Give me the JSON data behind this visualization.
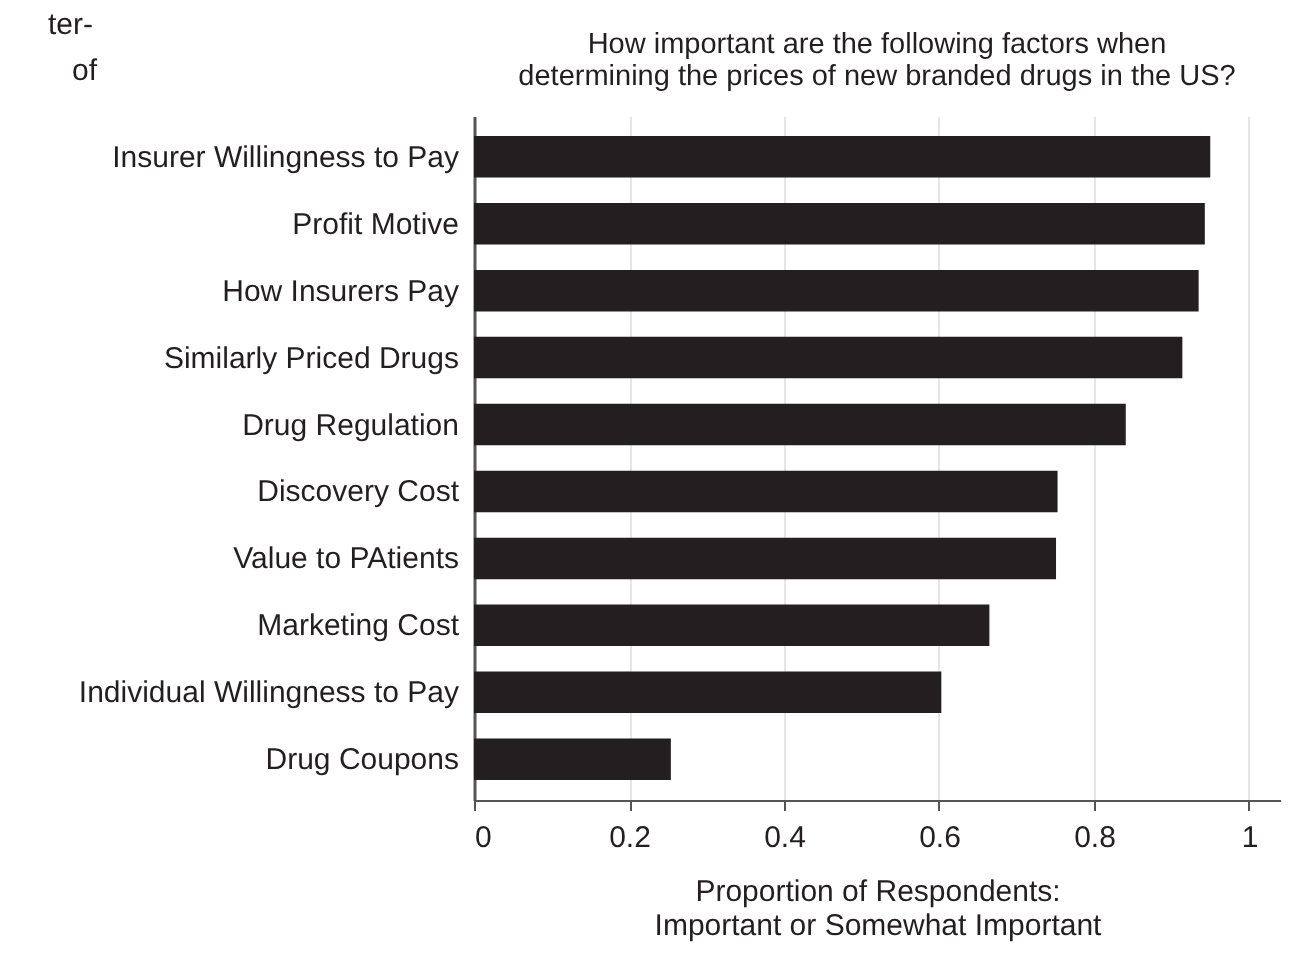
{
  "chart_data": {
    "type": "bar",
    "orientation": "horizontal",
    "title": "How important are the following factors when determining the prices of new branded drugs in the US?",
    "xlabel": "Proportion of Respondents: Important or Somewhat Important",
    "categories": [
      "Insurer Willingness to Pay",
      "Profit Motive",
      "How Insurers Pay",
      "Similarly Priced Drugs",
      "Drug Regulation",
      "Discovery Cost",
      "Value to PAtients",
      "Marketing Cost",
      "Individual Willingness to Pay",
      "Drug Coupons"
    ],
    "values": [
      0.95,
      0.943,
      0.935,
      0.914,
      0.841,
      0.753,
      0.751,
      0.665,
      0.603,
      0.254
    ],
    "color": "#231f20",
    "xlim": [
      0,
      1.04
    ],
    "xticks": [
      0,
      0.2,
      0.4,
      0.6,
      0.8,
      1
    ],
    "grid": "x",
    "annotations": [
      "ter-",
      "of"
    ]
  }
}
